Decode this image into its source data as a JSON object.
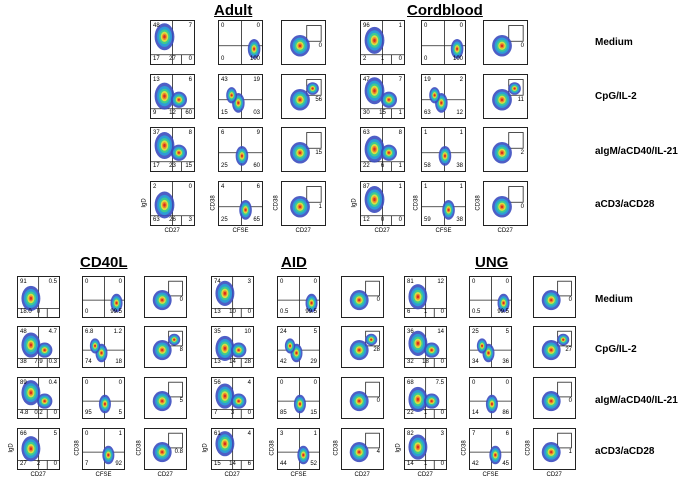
{
  "titles": {
    "adult": "Adult",
    "cordblood": "Cordblood",
    "cd40l": "CD40L",
    "aid": "AID",
    "ung": "UNG"
  },
  "row_labels": [
    "Medium",
    "CpG/IL-2",
    "aIgM/aCD40/IL-21",
    "aCD3/aCD28"
  ],
  "axis_labels": {
    "igd": "IgD",
    "cd27": "CD27",
    "cd38": "CD38",
    "cfse": "CFSE"
  },
  "groups": [
    {
      "name": "Adult",
      "rows": [
        {
          "p1": [
            "48",
            "7",
            "17",
            "27",
            "0"
          ],
          "p2": [
            "0",
            "0",
            "0",
            "",
            "100"
          ],
          "p3": "0"
        },
        {
          "p1": [
            "13",
            "6",
            "9",
            "12",
            "60"
          ],
          "p2": [
            "43",
            "19",
            "15",
            "",
            "03"
          ],
          "p3": "56"
        },
        {
          "p1": [
            "37",
            "8",
            "17",
            "23",
            "15"
          ],
          "p2": [
            "6",
            "9",
            "25",
            "",
            "60"
          ],
          "p3": "15"
        },
        {
          "p1": [
            "2",
            "0",
            "63",
            "26",
            "3"
          ],
          "p2": [
            "4",
            "6",
            "25",
            "",
            "65"
          ],
          "p3": "1"
        }
      ]
    },
    {
      "name": "Cordblood",
      "rows": [
        {
          "p1": [
            "96",
            "1",
            "2",
            "1",
            "0"
          ],
          "p2": [
            "0",
            "0",
            "0",
            "",
            "100"
          ],
          "p3": "0"
        },
        {
          "p1": [
            "47",
            "7",
            "30",
            "15",
            "1"
          ],
          "p2": [
            "19",
            "2",
            "63",
            "",
            "12"
          ],
          "p3": "11"
        },
        {
          "p1": [
            "63",
            "8",
            "22",
            "6",
            "1"
          ],
          "p2": [
            "1",
            "1",
            "58",
            "",
            "38"
          ],
          "p3": "2"
        },
        {
          "p1": [
            "87",
            "1",
            "12",
            "0",
            "0"
          ],
          "p2": [
            "1",
            "1",
            "59",
            "",
            "38"
          ],
          "p3": "0"
        }
      ]
    },
    {
      "name": "CD40L",
      "rows": [
        {
          "p1": [
            "91",
            "0.5",
            "18.0",
            "0",
            ""
          ],
          "p2": [
            "0",
            "0",
            "0",
            "",
            "99.5"
          ],
          "p3": "0"
        },
        {
          "p1": [
            "48",
            "4.7",
            "38",
            "7.9",
            "0.3"
          ],
          "p2": [
            "6.8",
            "1.2",
            "74",
            "",
            "18"
          ],
          "p3": "8"
        },
        {
          "p1": [
            "89",
            "0.4",
            "4.8",
            "0.2",
            "0"
          ],
          "p2": [
            "0",
            "0",
            "95",
            "",
            "5"
          ],
          "p3": "5"
        },
        {
          "p1": [
            "66",
            "5",
            "27",
            "2",
            "0"
          ],
          "p2": [
            "0",
            "1",
            "7",
            "",
            "92"
          ],
          "p3": "0.8"
        }
      ]
    },
    {
      "name": "AID",
      "rows": [
        {
          "p1": [
            "74",
            "3",
            "13",
            "10",
            "0"
          ],
          "p2": [
            "0",
            "0",
            "0.5",
            "",
            "99.5"
          ],
          "p3": "0"
        },
        {
          "p1": [
            "35",
            "10",
            "13",
            "14",
            "28"
          ],
          "p2": [
            "24",
            "5",
            "42",
            "",
            "29"
          ],
          "p3": "28"
        },
        {
          "p1": [
            "56",
            "4",
            "7",
            "3",
            "0"
          ],
          "p2": [
            "0",
            "0",
            "85",
            "",
            "15"
          ],
          "p3": "0"
        },
        {
          "p1": [
            "61",
            "4",
            "15",
            "14",
            "6"
          ],
          "p2": [
            "3",
            "1",
            "44",
            "",
            "52"
          ],
          "p3": "4"
        }
      ]
    },
    {
      "name": "UNG",
      "rows": [
        {
          "p1": [
            "81",
            "12",
            "6",
            "1",
            "0"
          ],
          "p2": [
            "0",
            "0",
            "0.5",
            "",
            "99.5"
          ],
          "p3": "0"
        },
        {
          "p1": [
            "36",
            "14",
            "32",
            "18",
            "0"
          ],
          "p2": [
            "25",
            "5",
            "34",
            "",
            "36"
          ],
          "p3": "27"
        },
        {
          "p1": [
            "68",
            "7.5",
            "22",
            "1",
            "0"
          ],
          "p2": [
            "0",
            "0",
            "14",
            "",
            "86"
          ],
          "p3": "0"
        },
        {
          "p1": [
            "82",
            "3",
            "14",
            "1",
            "0"
          ],
          "p2": [
            "7",
            "6",
            "42",
            "",
            "45"
          ],
          "p3": "1"
        }
      ]
    }
  ]
}
